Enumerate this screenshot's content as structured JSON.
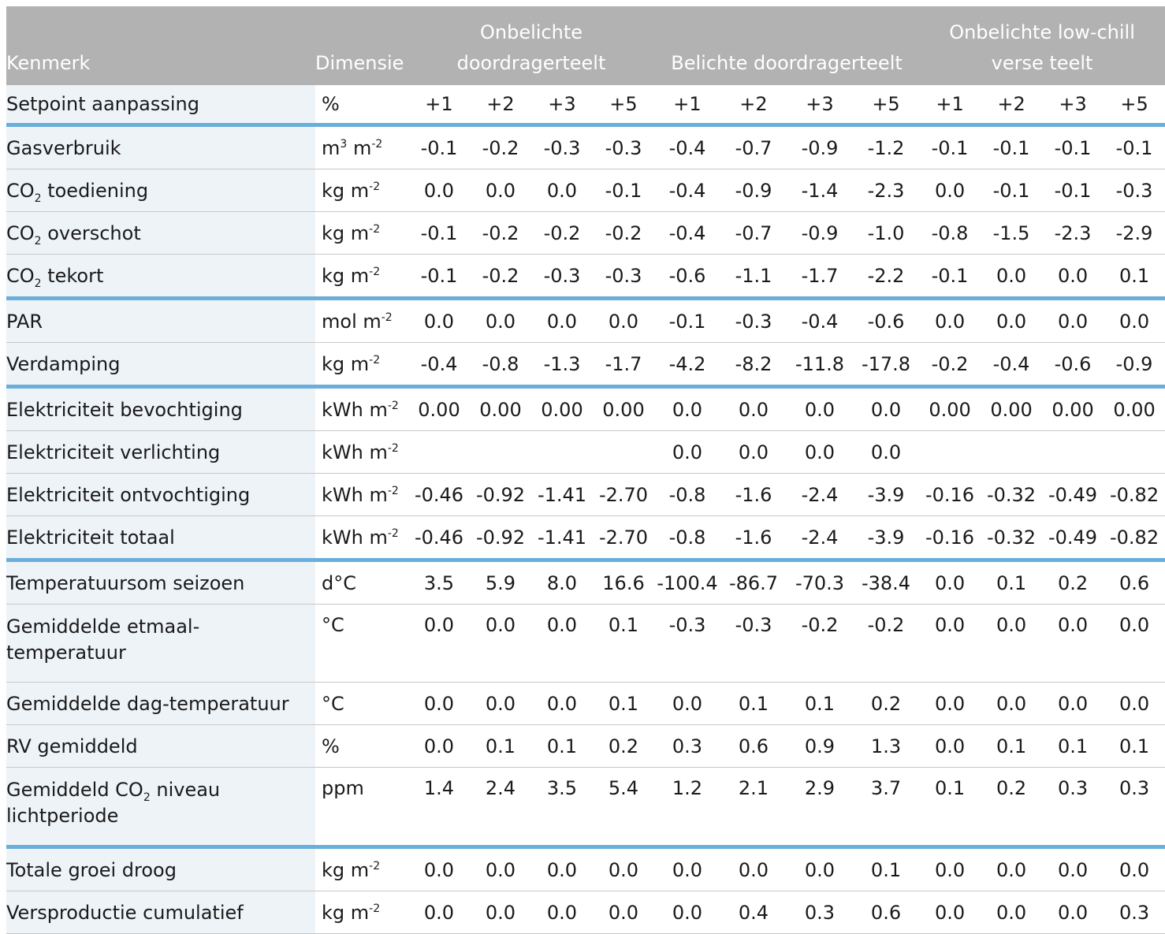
{
  "header": {
    "kenmerk": "Kenmerk",
    "dimensie": "Dimensie",
    "group1": [
      "Onbelichte",
      "doordragerteelt"
    ],
    "group2": "Belichte doordragerteelt",
    "group3": [
      "Onbelichte low-chill",
      "verse teelt"
    ]
  },
  "setpoint": {
    "label": "Setpoint aanpassing",
    "dim": "%",
    "values": [
      "+1",
      "+2",
      "+3",
      "+5",
      "+1",
      "+2",
      "+3",
      "+5",
      "+1",
      "+2",
      "+3",
      "+5"
    ]
  },
  "rows": [
    {
      "label": "Gasverbruik",
      "dim": "m³ m⁻²",
      "values": [
        "-0.1",
        "-0.2",
        "-0.3",
        "-0.3",
        "-0.4",
        "-0.7",
        "-0.9",
        "-1.2",
        "-0.1",
        "-0.1",
        "-0.1",
        "-0.1"
      ]
    },
    {
      "label": "CO₂ toediening",
      "dim": "kg m⁻²",
      "values": [
        "0.0",
        "0.0",
        "0.0",
        "-0.1",
        "-0.4",
        "-0.9",
        "-1.4",
        "-2.3",
        "0.0",
        "-0.1",
        "-0.1",
        "-0.3"
      ]
    },
    {
      "label": "CO₂ overschot",
      "dim": "kg m⁻²",
      "values": [
        "-0.1",
        "-0.2",
        "-0.2",
        "-0.2",
        "-0.4",
        "-0.7",
        "-0.9",
        "-1.0",
        "-0.8",
        "-1.5",
        "-2.3",
        "-2.9"
      ]
    },
    {
      "label": "CO₂ tekort",
      "dim": "kg m⁻²",
      "values": [
        "-0.1",
        "-0.2",
        "-0.3",
        "-0.3",
        "-0.6",
        "-1.1",
        "-1.7",
        "-2.2",
        "-0.1",
        "0.0",
        "0.0",
        "0.1"
      ]
    },
    {
      "label": "PAR",
      "dim": "mol m⁻²",
      "values": [
        "0.0",
        "0.0",
        "0.0",
        "0.0",
        "-0.1",
        "-0.3",
        "-0.4",
        "-0.6",
        "0.0",
        "0.0",
        "0.0",
        "0.0"
      ]
    },
    {
      "label": "Verdamping",
      "dim": "kg m⁻²",
      "values": [
        "-0.4",
        "-0.8",
        "-1.3",
        "-1.7",
        "-4.2",
        "-8.2",
        "-11.8",
        "-17.8",
        "-0.2",
        "-0.4",
        "-0.6",
        "-0.9"
      ]
    },
    {
      "label": "Elektriciteit bevochtiging",
      "dim": "kWh m⁻²",
      "values": [
        "0.00",
        "0.00",
        "0.00",
        "0.00",
        "0.0",
        "0.0",
        "0.0",
        "0.0",
        "0.00",
        "0.00",
        "0.00",
        "0.00"
      ]
    },
    {
      "label": "Elektriciteit verlichting",
      "dim": "kWh m⁻²",
      "values": [
        "",
        "",
        "",
        "",
        "0.0",
        "0.0",
        "0.0",
        "0.0",
        "",
        "",
        "",
        ""
      ]
    },
    {
      "label": "Elektriciteit ontvochtiging",
      "dim": "kWh m⁻²",
      "values": [
        "-0.46",
        "-0.92",
        "-1.41",
        "-2.70",
        "-0.8",
        "-1.6",
        "-2.4",
        "-3.9",
        "-0.16",
        "-0.32",
        "-0.49",
        "-0.82"
      ]
    },
    {
      "label": "Elektriciteit totaal",
      "dim": "kWh m⁻²",
      "values": [
        "-0.46",
        "-0.92",
        "-1.41",
        "-2.70",
        "-0.8",
        "-1.6",
        "-2.4",
        "-3.9",
        "-0.16",
        "-0.32",
        "-0.49",
        "-0.82"
      ]
    },
    {
      "label": "Temperatuursom seizoen",
      "dim": "d°C",
      "values": [
        "3.5",
        "5.9",
        "8.0",
        "16.6",
        "-100.4",
        "-86.7",
        "-70.3",
        "-38.4",
        "0.0",
        "0.1",
        "0.2",
        "0.6"
      ]
    },
    {
      "label": "Gemiddelde etmaal-temperatuur",
      "dim": "°C",
      "values": [
        "0.0",
        "0.0",
        "0.0",
        "0.1",
        "-0.3",
        "-0.3",
        "-0.2",
        "-0.2",
        "0.0",
        "0.0",
        "0.0",
        "0.0"
      ]
    },
    {
      "label": "Gemiddelde dag-temperatuur",
      "dim": "°C",
      "values": [
        "0.0",
        "0.0",
        "0.0",
        "0.1",
        "0.0",
        "0.1",
        "0.1",
        "0.2",
        "0.0",
        "0.0",
        "0.0",
        "0.0"
      ]
    },
    {
      "label": "RV gemiddeld",
      "dim": "%",
      "values": [
        "0.0",
        "0.1",
        "0.1",
        "0.2",
        "0.3",
        "0.6",
        "0.9",
        "1.3",
        "0.0",
        "0.1",
        "0.1",
        "0.1"
      ]
    },
    {
      "label": "Gemiddeld CO₂ niveau lichtperiode",
      "dim": "ppm",
      "values": [
        "1.4",
        "2.4",
        "3.5",
        "5.4",
        "1.2",
        "2.1",
        "2.9",
        "3.7",
        "0.1",
        "0.2",
        "0.3",
        "0.3"
      ]
    },
    {
      "label": "Totale groei droog",
      "dim": "kg m⁻²",
      "values": [
        "0.0",
        "0.0",
        "0.0",
        "0.0",
        "0.0",
        "0.0",
        "0.0",
        "0.1",
        "0.0",
        "0.0",
        "0.0",
        "0.0"
      ]
    },
    {
      "label": "Versproductie cumulatief",
      "dim": "kg m⁻²",
      "values": [
        "0.0",
        "0.0",
        "0.0",
        "0.0",
        "0.0",
        "0.4",
        "0.3",
        "0.6",
        "0.0",
        "0.0",
        "0.0",
        "0.3"
      ]
    }
  ],
  "colors": {
    "header_bg": "#b2b2b2",
    "separator": "#6aaedb",
    "label_bg": "#eef3f8"
  }
}
